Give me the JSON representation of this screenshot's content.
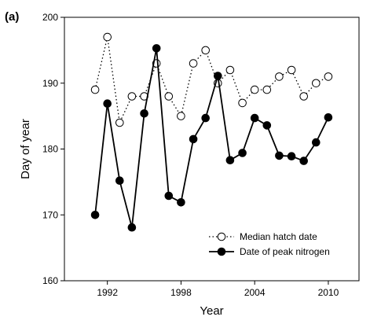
{
  "panel_label": "(a)",
  "chart_data": {
    "type": "line",
    "xlabel": "Year",
    "ylabel": "Day of year",
    "xlim": [
      1988.5,
      2012.5
    ],
    "ylim": [
      160,
      200
    ],
    "xticks": [
      1992,
      1998,
      2004,
      2010
    ],
    "xtick_labels": [
      "1992",
      "1998",
      "2004",
      "2010"
    ],
    "yticks": [
      160,
      170,
      180,
      190,
      200
    ],
    "ytick_labels": [
      "160",
      "170",
      "180",
      "190",
      "200"
    ],
    "grid": false,
    "legend_position": "bottom-right",
    "series": [
      {
        "name": "Median hatch date",
        "style": "dotted",
        "marker": "open-circle",
        "x": [
          1991,
          1992,
          1993,
          1994,
          1995,
          1996,
          1997,
          1998,
          1999,
          2000,
          2001,
          2002,
          2003,
          2004,
          2005,
          2006,
          2007,
          2008,
          2009,
          2010
        ],
        "y": [
          189,
          197,
          184,
          188,
          188,
          193,
          188,
          185,
          193,
          195,
          190,
          192,
          187,
          189,
          189,
          191,
          192,
          188,
          190,
          191
        ]
      },
      {
        "name": "Date of peak nitrogen",
        "style": "solid",
        "marker": "filled-circle",
        "x": [
          1991,
          1992,
          1993,
          1994,
          1995,
          1996,
          1997,
          1998,
          1999,
          2000,
          2001,
          2002,
          2003,
          2004,
          2005,
          2006,
          2007,
          2008,
          2009,
          2010
        ],
        "y": [
          170,
          186.9,
          175.2,
          168.1,
          185.4,
          195.3,
          172.9,
          171.9,
          181.5,
          184.7,
          191.1,
          178.3,
          179.4,
          184.7,
          183.6,
          179,
          178.9,
          178.2,
          181,
          184.8
        ]
      }
    ]
  }
}
